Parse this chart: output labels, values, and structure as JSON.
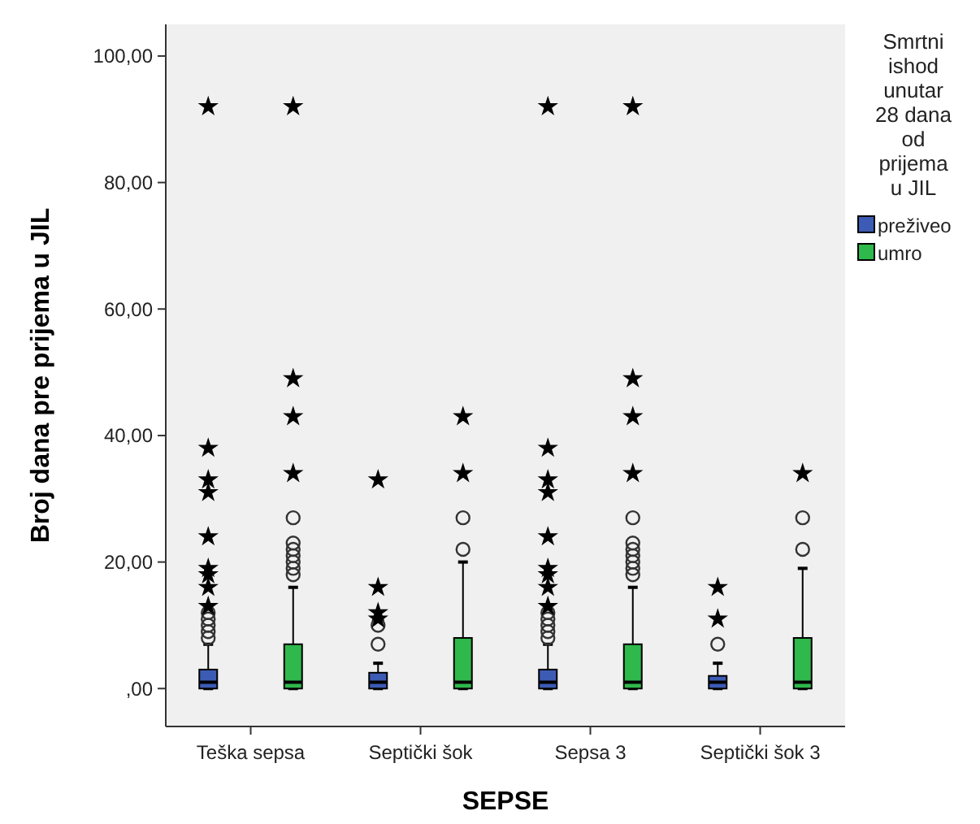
{
  "chart_data": {
    "type": "box",
    "xlabel": "SEPSE",
    "ylabel": "Broj dana pre prijema u JIL",
    "legend_title": "Smrtni ishod unutar 28 dana od prijema u JIL",
    "legend": "right",
    "categories": [
      "Teška sepsa",
      "Septički šok",
      "Sepsa 3",
      "Septički šok 3"
    ],
    "ylim": [
      -6,
      105
    ],
    "yticks": [
      {
        "value": 0,
        "label": ",00"
      },
      {
        "value": 20,
        "label": "20,00"
      },
      {
        "value": 40,
        "label": "40,00"
      },
      {
        "value": 60,
        "label": "60,00"
      },
      {
        "value": 80,
        "label": "80,00"
      },
      {
        "value": 100,
        "label": "100,00"
      }
    ],
    "series": [
      {
        "name": "preživeo",
        "color": "#3c5bb4",
        "boxes": [
          {
            "low": 0,
            "q1": 0,
            "median": 1,
            "q3": 3,
            "high": 7,
            "outliers": [
              8,
              9,
              10,
              11,
              12,
              13,
              16,
              18,
              19,
              24,
              31,
              33,
              38,
              92
            ]
          },
          {
            "low": 0,
            "q1": 0,
            "median": 1,
            "q3": 2.5,
            "high": 4,
            "outliers": [
              7,
              10,
              11,
              12,
              16,
              33
            ]
          },
          {
            "low": 0,
            "q1": 0,
            "median": 1,
            "q3": 3,
            "high": 7,
            "outliers": [
              8,
              9,
              10,
              11,
              12,
              13,
              16,
              18,
              19,
              24,
              31,
              33,
              38,
              92
            ]
          },
          {
            "low": 0,
            "q1": 0,
            "median": 1,
            "q3": 2,
            "high": 4,
            "outliers": [
              7,
              11,
              16
            ]
          }
        ]
      },
      {
        "name": "umro",
        "color": "#2fb84b",
        "boxes": [
          {
            "low": 0,
            "q1": 0,
            "median": 1,
            "q3": 7,
            "high": 16,
            "outliers": [
              18,
              19,
              20,
              21,
              22,
              23,
              27,
              34,
              43,
              49,
              92
            ]
          },
          {
            "low": 0,
            "q1": 0,
            "median": 1,
            "q3": 8,
            "high": 20,
            "outliers": [
              22,
              27,
              34,
              43
            ]
          },
          {
            "low": 0,
            "q1": 0,
            "median": 1,
            "q3": 7,
            "high": 16,
            "outliers": [
              18,
              19,
              20,
              21,
              22,
              23,
              27,
              34,
              43,
              49,
              92
            ]
          },
          {
            "low": 0,
            "q1": 0,
            "median": 1,
            "q3": 8,
            "high": 19,
            "outliers": [
              22,
              27,
              34
            ]
          }
        ]
      }
    ]
  }
}
